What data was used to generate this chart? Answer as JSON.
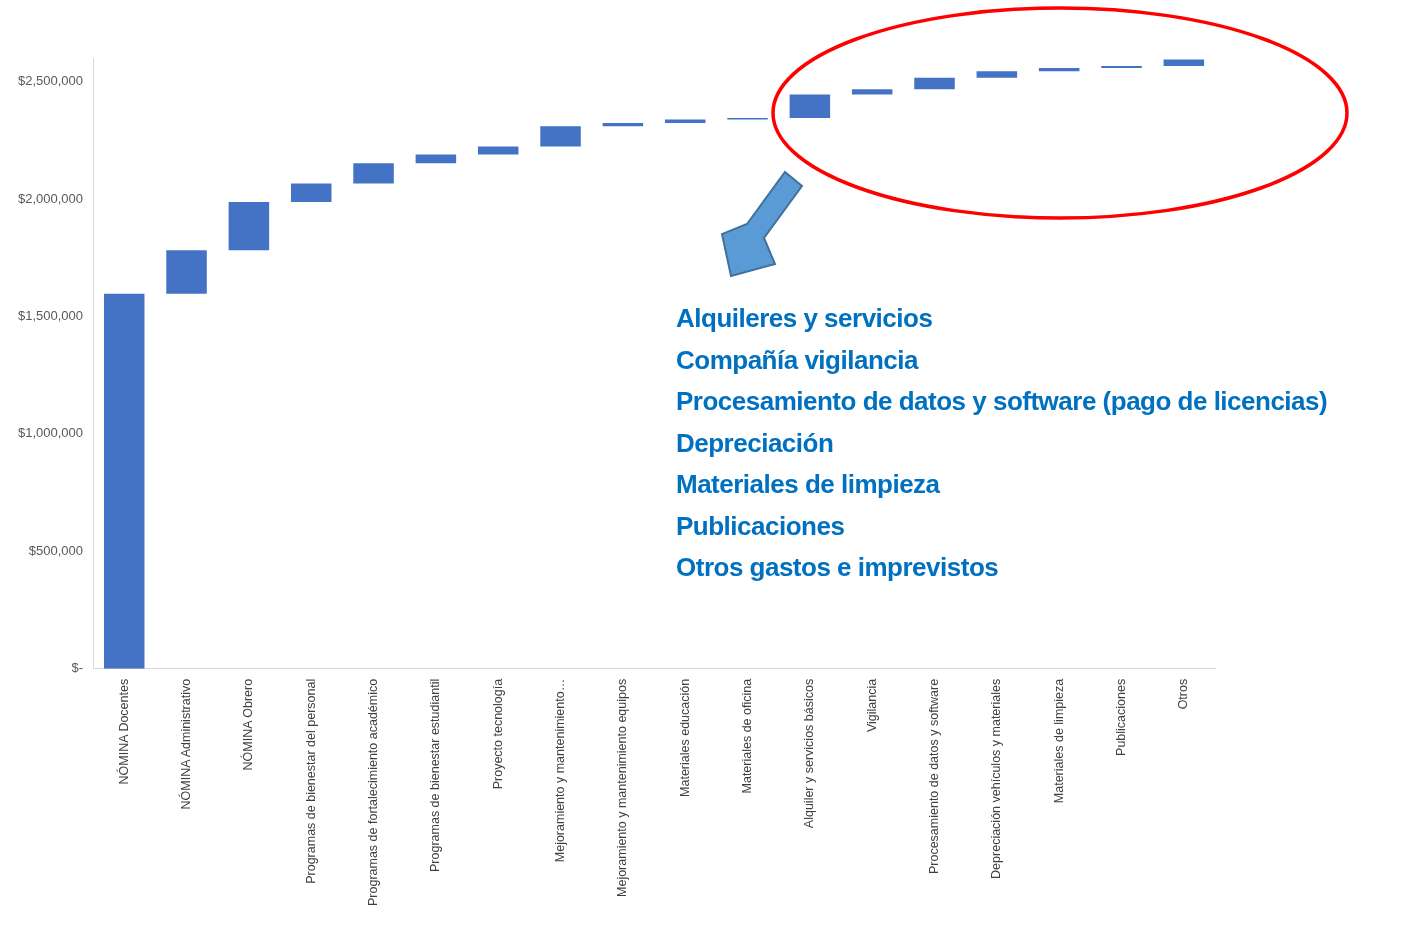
{
  "chart_data": {
    "type": "bar",
    "categories": [
      "NÓMINA Docentes",
      "NÓMINA Administrativo",
      "NÓMINA Obrero",
      "Programas de bienestar del personal",
      "Programas de fortalecimiento académico",
      "Programas de bienestar estudiantil",
      "Proyecto tecnología",
      "Mejoramiento y mantenimiento…",
      "Mejoramiento y mantenimiento equipos",
      "Materiales educación",
      "Materiales de oficina",
      "Alquiler y servicios básicos",
      "Vigilancia",
      "Procesamiento de datos y software",
      "Depreciación vehículos y materiales",
      "Materiales de limpieza",
      "Publicaciones",
      "Otros"
    ],
    "values": [
      1597000,
      185000,
      205000,
      79000,
      86000,
      37000,
      34000,
      86000,
      14000,
      15000,
      7000,
      100000,
      22000,
      49000,
      28000,
      13000,
      9000,
      28000
    ],
    "base": [
      0,
      1597000,
      1782000,
      1987000,
      2066000,
      2152000,
      2189000,
      2223000,
      2309000,
      2323000,
      2338000,
      2345000,
      2445000,
      2467000,
      2516000,
      2544000,
      2557000,
      2566000
    ],
    "color": "#4472c4",
    "ylim": [
      0,
      2600000
    ],
    "yticks": [
      {
        "value": 0,
        "label": "$-"
      },
      {
        "value": 500000,
        "label": "$500,000"
      },
      {
        "value": 1000000,
        "label": "$1,000,000"
      },
      {
        "value": 1500000,
        "label": "$1,500,000"
      },
      {
        "value": 2000000,
        "label": "$2,000,000"
      },
      {
        "value": 2500000,
        "label": "$2,500,000"
      }
    ],
    "grid": false,
    "legend": false,
    "annotations": [
      "Alquileres y servicios",
      "Compañía vigilancia",
      "Procesamiento de datos y software (pago de licencias)",
      "Depreciación",
      "Materiales de limpieza",
      "Publicaciones",
      "Otros gastos e imprevistos"
    ]
  }
}
